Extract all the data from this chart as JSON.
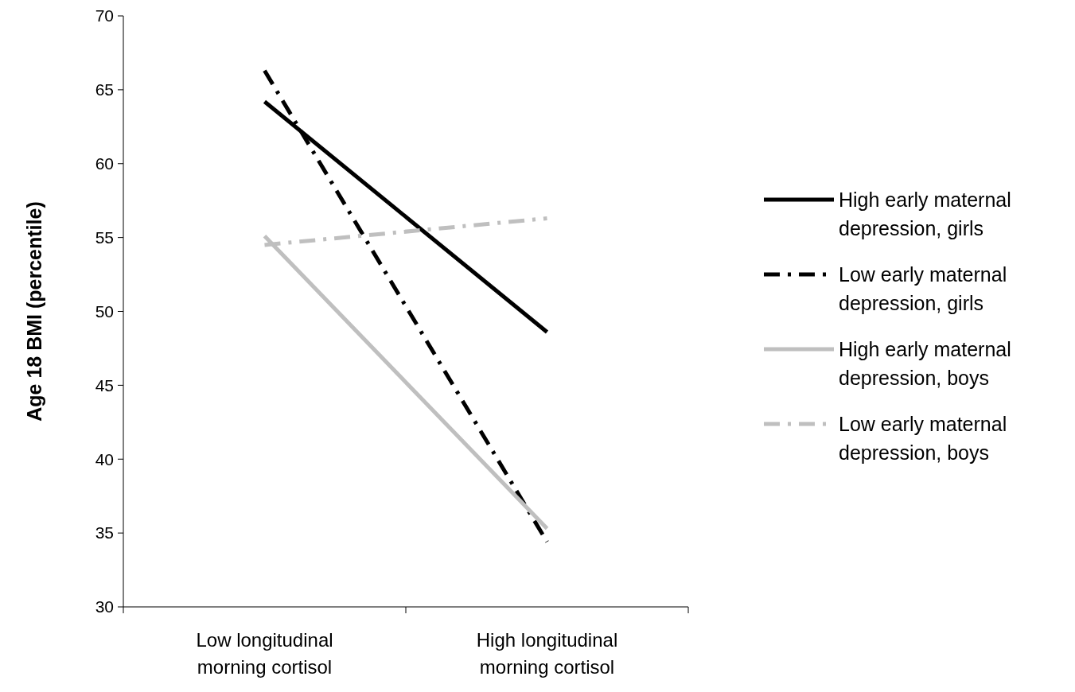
{
  "chart_data": {
    "type": "line",
    "ylabel": "Age 18 BMI (percentile)",
    "categories": [
      "Low longitudinal morning cortisol",
      "High longitudinal morning cortisol"
    ],
    "ylim": [
      30,
      70
    ],
    "yticks": [
      30,
      35,
      40,
      45,
      50,
      55,
      60,
      65,
      70
    ],
    "grid": false,
    "legend": "right",
    "marker": "none",
    "series": [
      {
        "name": "High early maternal depression, girls",
        "color": "#000000",
        "line_style": "solid",
        "values": [
          64.2,
          48.6
        ]
      },
      {
        "name": "Low early maternal depression, girls",
        "color": "#000000",
        "line_style": "dashdot",
        "values": [
          66.3,
          34.4
        ]
      },
      {
        "name": "High early maternal depression, boys",
        "color": "#bfbfbf",
        "line_style": "solid",
        "values": [
          55.1,
          35.3
        ]
      },
      {
        "name": "Low early maternal depression, boys",
        "color": "#bfbfbf",
        "line_style": "dashdot",
        "values": [
          54.5,
          56.3
        ]
      }
    ]
  }
}
